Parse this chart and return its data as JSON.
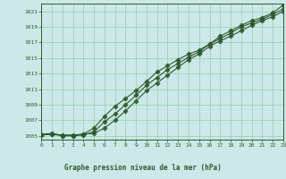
{
  "background_color": "#cce8e8",
  "plot_bg_color": "#cce8e8",
  "line_color": "#2d5a2d",
  "marker_color": "#2d5a2d",
  "grid_color": "#99ccaa",
  "title": "Graphe pression niveau de la mer (hPa)",
  "title_color": "#2d5a2d",
  "xlim": [
    0,
    23
  ],
  "ylim": [
    1004.5,
    1022
  ],
  "yticks": [
    1005,
    1007,
    1009,
    1011,
    1013,
    1015,
    1017,
    1019,
    1021
  ],
  "xticks": [
    0,
    1,
    2,
    3,
    4,
    5,
    6,
    7,
    8,
    9,
    10,
    11,
    12,
    13,
    14,
    15,
    16,
    17,
    18,
    19,
    20,
    21,
    22,
    23
  ],
  "series1_x": [
    0,
    1,
    2,
    3,
    4,
    5,
    6,
    7,
    8,
    9,
    10,
    11,
    12,
    13,
    14,
    15,
    16,
    17,
    18,
    19,
    20,
    21,
    22,
    23
  ],
  "series1_y": [
    1005.1,
    1005.2,
    1005.1,
    1005.1,
    1005.2,
    1005.3,
    1006.0,
    1007.0,
    1008.2,
    1009.5,
    1010.8,
    1011.8,
    1012.8,
    1013.8,
    1014.8,
    1015.5,
    1016.5,
    1017.2,
    1017.8,
    1018.5,
    1019.2,
    1019.8,
    1020.3,
    1021.0
  ],
  "series2_x": [
    0,
    1,
    2,
    3,
    4,
    5,
    6,
    7,
    8,
    9,
    10,
    11,
    12,
    13,
    14,
    15,
    16,
    17,
    18,
    19,
    20,
    21,
    22,
    23
  ],
  "series2_y": [
    1005.1,
    1005.2,
    1005.0,
    1005.0,
    1005.1,
    1005.5,
    1006.8,
    1007.8,
    1009.0,
    1010.2,
    1011.5,
    1012.5,
    1013.5,
    1014.3,
    1015.1,
    1015.8,
    1016.8,
    1017.5,
    1018.2,
    1019.0,
    1019.5,
    1020.0,
    1020.6,
    1021.3
  ],
  "series3_x": [
    0,
    1,
    2,
    3,
    4,
    5,
    6,
    7,
    8,
    9,
    10,
    11,
    12,
    13,
    14,
    15,
    16,
    17,
    18,
    19,
    20,
    21,
    22,
    23
  ],
  "series3_y": [
    1005.2,
    1005.3,
    1005.0,
    1005.0,
    1005.2,
    1006.0,
    1007.5,
    1008.8,
    1009.8,
    1010.8,
    1012.0,
    1013.2,
    1014.0,
    1014.8,
    1015.5,
    1016.0,
    1016.8,
    1017.8,
    1018.5,
    1019.2,
    1019.8,
    1020.2,
    1020.8,
    1021.8
  ]
}
